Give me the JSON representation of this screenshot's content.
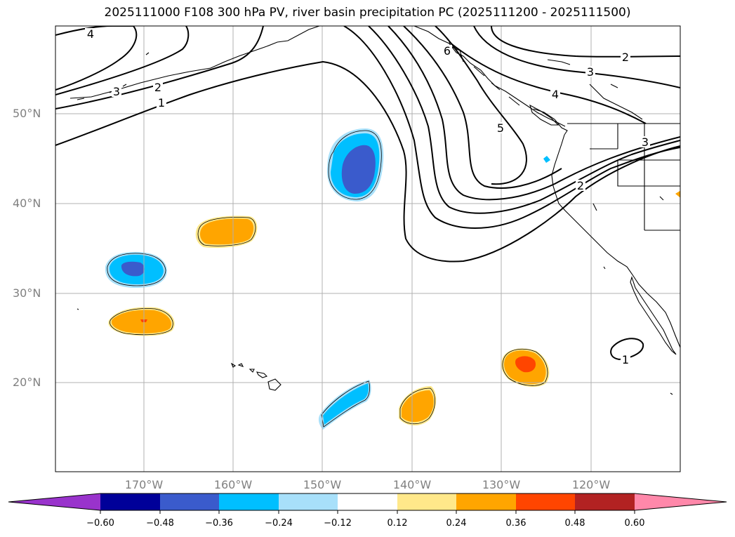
{
  "title": "2025111000 F108 300 hPa PV, river basin precipitation PC (2025111200 - 2025111500)",
  "lat_labels": [
    "50°N",
    "40°N",
    "30°N",
    "20°N"
  ],
  "lon_labels": [
    "170°W",
    "160°W",
    "150°W",
    "140°W",
    "130°W",
    "120°W"
  ],
  "contour_labels": [
    "4",
    "3",
    "2",
    "1",
    "6",
    "5",
    "2",
    "3",
    "4",
    "3",
    "2",
    "1"
  ],
  "colorbar": {
    "ticks": [
      "−0.60",
      "−0.48",
      "−0.36",
      "−0.24",
      "−0.12",
      "0.12",
      "0.24",
      "0.36",
      "0.48",
      "0.60"
    ],
    "colors": [
      "#9933cc",
      "#000099",
      "#3a5bcc",
      "#00bfff",
      "#a8e0fa",
      "#ffffff",
      "#ffe88a",
      "#ffa500",
      "#ff4500",
      "#b22222",
      "#ff88aa"
    ],
    "extend": "both"
  }
}
